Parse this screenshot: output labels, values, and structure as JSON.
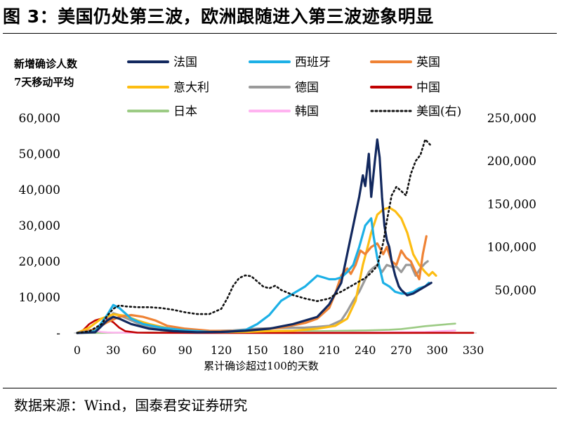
{
  "title": "图 3：美国仍处第三波，欧洲跟随进入第三波迹象明显",
  "source": "数据来源：Wind，国泰君安证券研究",
  "chart_data": {
    "type": "line",
    "ylabel_lines": [
      "新增确诊人数",
      "7天移动平均"
    ],
    "xlabel": "累计确诊超过100的天数",
    "x_ticks": [
      0,
      30,
      60,
      90,
      120,
      150,
      180,
      210,
      240,
      270,
      300,
      330
    ],
    "xlim": [
      0,
      330
    ],
    "y_left_ticks": [
      "-",
      "10,000",
      "20,000",
      "30,000",
      "40,000",
      "50,000",
      "60,000"
    ],
    "y_left_lim": [
      0,
      60000
    ],
    "y_right_ticks": [
      "50,000",
      "100,000",
      "150,000",
      "200,000",
      "250,000"
    ],
    "y_right_lim": [
      0,
      250000
    ],
    "grid": false,
    "legend_placement": "top",
    "series": [
      {
        "name": "法国",
        "color": "#12285e",
        "dash": "solid",
        "width": 3.2,
        "axis": "left",
        "x": [
          0,
          15,
          25,
          30,
          35,
          45,
          60,
          80,
          100,
          120,
          140,
          160,
          180,
          200,
          210,
          220,
          225,
          230,
          235,
          238,
          240,
          243,
          245,
          248,
          250,
          252,
          254,
          256,
          258,
          260,
          262,
          265,
          268,
          270,
          275,
          280,
          285,
          290,
          295
        ],
        "y": [
          0,
          200,
          3500,
          4500,
          4000,
          2500,
          1200,
          500,
          200,
          300,
          600,
          1200,
          2500,
          4500,
          8000,
          14000,
          22000,
          30000,
          38000,
          44000,
          41000,
          50000,
          38000,
          48000,
          54000,
          49000,
          38000,
          30000,
          26000,
          24000,
          20000,
          16000,
          13000,
          12000,
          10500,
          11000,
          12000,
          13000,
          14000
        ]
      },
      {
        "name": "西班牙",
        "color": "#1cb0e6",
        "dash": "solid",
        "width": 3.2,
        "axis": "left",
        "x": [
          0,
          15,
          25,
          30,
          35,
          45,
          55,
          70,
          90,
          110,
          125,
          140,
          150,
          160,
          170,
          180,
          190,
          200,
          205,
          210,
          215,
          220,
          225,
          230,
          235,
          240,
          245,
          247,
          250,
          255,
          260,
          265,
          270,
          275,
          280,
          285,
          290,
          293
        ],
        "y": [
          0,
          500,
          5000,
          7800,
          7000,
          4000,
          2500,
          1500,
          700,
          300,
          300,
          800,
          2500,
          5000,
          9000,
          11000,
          13000,
          16000,
          15500,
          15000,
          15000,
          15500,
          17000,
          19000,
          24000,
          30000,
          32000,
          27000,
          21000,
          14000,
          13000,
          11500,
          11000,
          11000,
          11500,
          12500,
          13000,
          14000
        ]
      },
      {
        "name": "英国",
        "color": "#ef8234",
        "dash": "solid",
        "width": 3.2,
        "axis": "left",
        "x": [
          0,
          15,
          25,
          35,
          45,
          55,
          65,
          75,
          90,
          110,
          130,
          150,
          170,
          190,
          200,
          210,
          215,
          220,
          225,
          228,
          232,
          236,
          240,
          245,
          250,
          255,
          258,
          262,
          266,
          270,
          274,
          278,
          282,
          285,
          288,
          291
        ],
        "y": [
          0,
          1000,
          3000,
          4500,
          5000,
          4500,
          3500,
          2000,
          1200,
          600,
          500,
          900,
          1500,
          2800,
          4000,
          7000,
          11000,
          16000,
          18000,
          16500,
          19000,
          23000,
          22000,
          24000,
          25000,
          22000,
          24000,
          20000,
          19000,
          23000,
          21000,
          20000,
          17000,
          15000,
          22000,
          27000
        ]
      },
      {
        "name": "意大利",
        "color": "#fdbd12",
        "dash": "solid",
        "width": 3.2,
        "axis": "left",
        "x": [
          0,
          10,
          20,
          30,
          40,
          50,
          60,
          80,
          100,
          120,
          140,
          160,
          180,
          200,
          215,
          225,
          232,
          238,
          242,
          245,
          250,
          255,
          260,
          265,
          270,
          275,
          280,
          285,
          290,
          293,
          296,
          299
        ],
        "y": [
          0,
          1500,
          4000,
          5200,
          4800,
          3500,
          2500,
          1000,
          400,
          250,
          300,
          500,
          600,
          1200,
          2000,
          4000,
          9000,
          19000,
          24000,
          28000,
          33000,
          34500,
          35000,
          34000,
          32000,
          28000,
          22000,
          19000,
          17000,
          16000,
          17000,
          16000
        ]
      },
      {
        "name": "德国",
        "color": "#9a9a9a",
        "dash": "solid",
        "width": 3.2,
        "axis": "left",
        "x": [
          0,
          15,
          25,
          30,
          35,
          45,
          55,
          70,
          90,
          110,
          130,
          150,
          170,
          190,
          200,
          210,
          220,
          225,
          230,
          235,
          240,
          243,
          246,
          250,
          254,
          258,
          262,
          266,
          270,
          274,
          278,
          282,
          286,
          290,
          292
        ],
        "y": [
          0,
          1000,
          3500,
          5500,
          5000,
          3500,
          2000,
          800,
          400,
          500,
          700,
          1200,
          1400,
          1500,
          1700,
          2000,
          3500,
          6000,
          9000,
          11500,
          15000,
          17000,
          18000,
          19000,
          17000,
          19000,
          18500,
          18500,
          17000,
          19000,
          19000,
          16000,
          18000,
          19500,
          20000
        ]
      },
      {
        "name": "中国",
        "color": "#c00000",
        "dash": "solid",
        "width": 2.6,
        "axis": "left",
        "x": [
          0,
          5,
          10,
          15,
          20,
          25,
          30,
          35,
          40,
          50,
          60,
          80,
          100,
          150,
          200,
          250,
          300,
          330
        ],
        "y": [
          0,
          800,
          2500,
          3500,
          4000,
          4000,
          3000,
          1500,
          500,
          100,
          50,
          30,
          20,
          20,
          20,
          20,
          30,
          40
        ]
      },
      {
        "name": "日本",
        "color": "#9ccb84",
        "dash": "solid",
        "width": 2.6,
        "axis": "left",
        "x": [
          0,
          50,
          100,
          150,
          200,
          240,
          260,
          270,
          280,
          290,
          300,
          310,
          315
        ],
        "y": [
          0,
          100,
          200,
          400,
          500,
          700,
          900,
          1100,
          1500,
          1900,
          2200,
          2500,
          2600
        ]
      },
      {
        "name": "韩国",
        "color": "#ffb3f0",
        "dash": "solid",
        "width": 2.6,
        "axis": "left",
        "x": [
          0,
          5,
          10,
          15,
          20,
          25,
          30,
          40,
          60,
          100,
          150,
          200,
          250,
          290,
          300,
          310,
          315
        ],
        "y": [
          0,
          400,
          800,
          600,
          300,
          150,
          100,
          80,
          60,
          50,
          80,
          100,
          150,
          300,
          450,
          600,
          700
        ]
      },
      {
        "name": "美国(右)",
        "color": "#111111",
        "dash": "dotted",
        "width": 2.4,
        "axis": "right",
        "x": [
          0,
          10,
          20,
          25,
          30,
          35,
          40,
          50,
          60,
          70,
          80,
          90,
          100,
          110,
          120,
          125,
          130,
          135,
          140,
          145,
          150,
          155,
          160,
          165,
          170,
          180,
          190,
          200,
          210,
          215,
          220,
          225,
          230,
          235,
          240,
          245,
          250,
          255,
          258,
          262,
          266,
          270,
          274,
          278,
          282,
          286,
          290,
          292,
          294
        ],
        "y": [
          0,
          2000,
          10000,
          20000,
          28000,
          32000,
          31000,
          30000,
          30000,
          29000,
          27000,
          24000,
          22000,
          22000,
          28000,
          40000,
          55000,
          64000,
          67000,
          66000,
          60000,
          54000,
          52000,
          55000,
          50000,
          44000,
          40000,
          37000,
          40000,
          45000,
          48000,
          52000,
          56000,
          60000,
          64000,
          70000,
          78000,
          105000,
          130000,
          160000,
          170000,
          165000,
          160000,
          185000,
          200000,
          207000,
          225000,
          222000,
          219000
        ]
      }
    ]
  }
}
